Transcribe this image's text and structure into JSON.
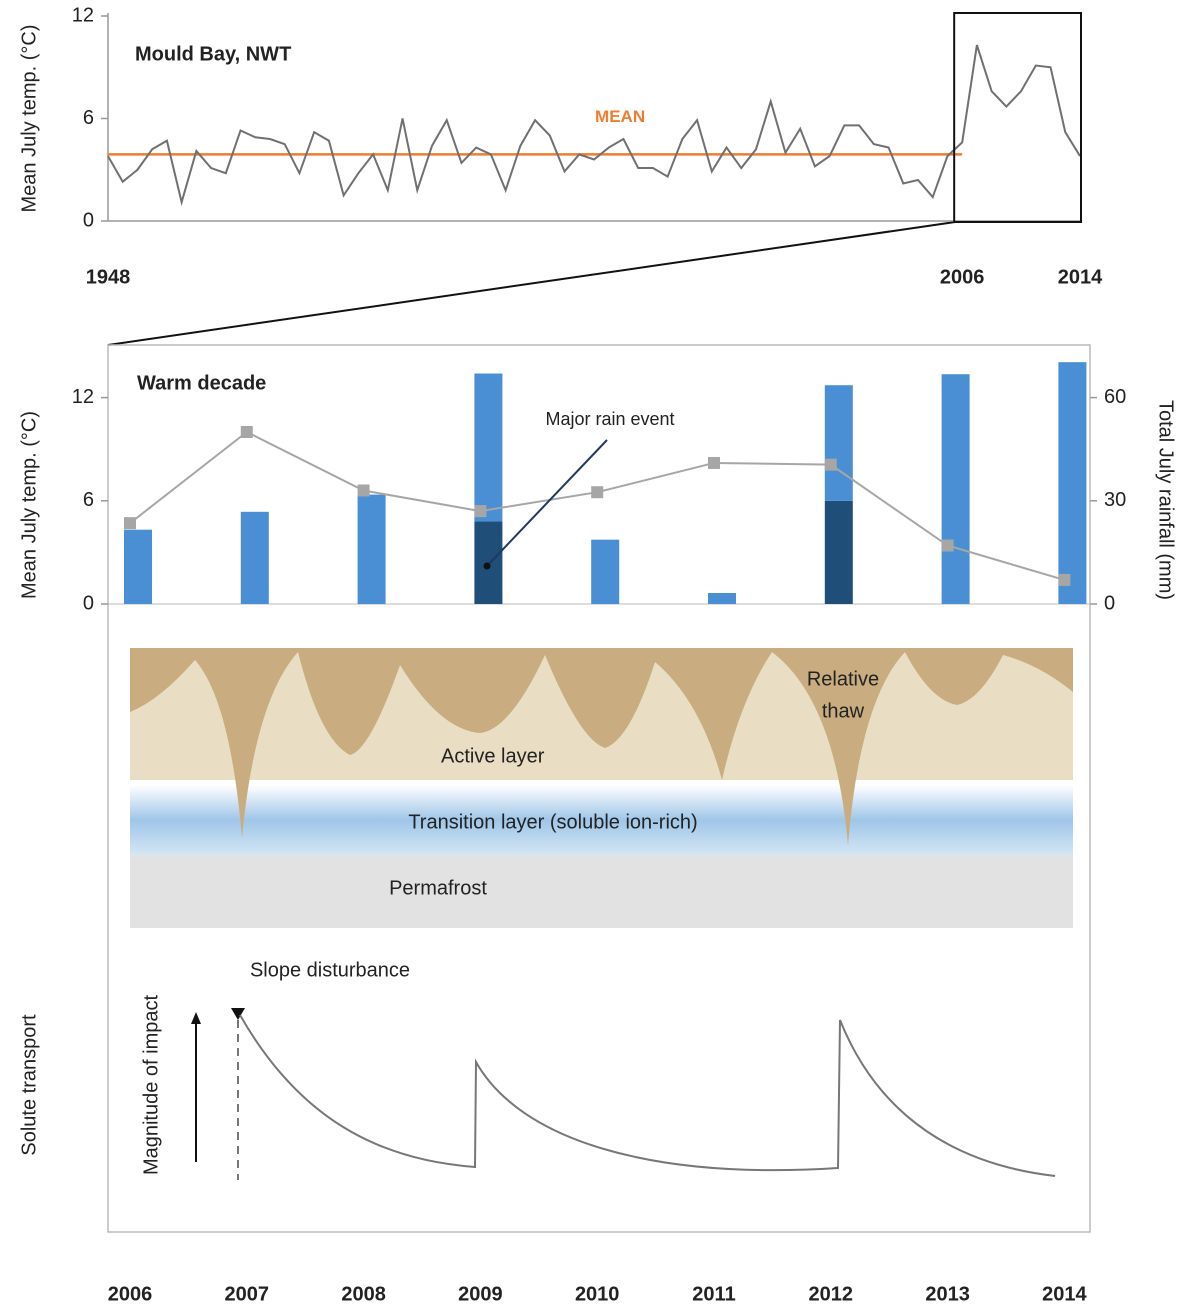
{
  "chart_data": [
    {
      "type": "line",
      "annotation": "Mould Bay, NWT",
      "ylabel": "Mean July temp. (°C)",
      "x": [
        1948,
        1949,
        1950,
        1951,
        1952,
        1953,
        1954,
        1955,
        1956,
        1957,
        1958,
        1959,
        1960,
        1961,
        1962,
        1963,
        1964,
        1965,
        1966,
        1967,
        1968,
        1969,
        1970,
        1971,
        1972,
        1973,
        1974,
        1975,
        1976,
        1977,
        1978,
        1979,
        1980,
        1981,
        1982,
        1983,
        1984,
        1985,
        1986,
        1987,
        1988,
        1989,
        1990,
        1991,
        1992,
        1993,
        1994,
        1995,
        1996,
        1997,
        1998,
        1999,
        2000,
        2001,
        2002,
        2003,
        2004,
        2005,
        2006,
        2007,
        2008,
        2009,
        2010,
        2011,
        2012,
        2013,
        2014
      ],
      "series": [
        {
          "color": "#707070",
          "values": [
            3.8,
            2.3,
            3.0,
            4.2,
            4.7,
            1.1,
            4.1,
            3.1,
            2.8,
            5.3,
            4.9,
            4.8,
            4.5,
            2.8,
            5.2,
            4.7,
            1.5,
            2.8,
            3.9,
            1.8,
            6.0,
            1.8,
            4.4,
            5.9,
            3.4,
            4.3,
            3.9,
            1.8,
            4.4,
            5.9,
            5.0,
            2.9,
            3.9,
            3.6,
            4.3,
            4.8,
            3.1,
            3.1,
            2.6,
            4.8,
            5.9,
            2.9,
            4.3,
            3.1,
            4.2,
            7.0,
            4.0,
            5.4,
            3.2,
            3.8,
            5.6,
            5.6,
            4.5,
            4.3,
            2.2,
            2.4,
            1.4,
            3.8,
            4.6,
            10.3,
            7.6,
            6.7,
            7.6,
            9.1,
            9.0,
            5.2,
            3.8
          ]
        }
      ],
      "mean": {
        "value": 3.9,
        "label": "MEAN",
        "color": "#ed7d31"
      },
      "xlim": [
        1948,
        2014
      ],
      "xticks": [
        1948,
        2006,
        2014
      ],
      "ylim": [
        0,
        12
      ],
      "yticks": [
        0,
        6,
        12
      ]
    },
    {
      "type": "combo",
      "annotation": "Warm decade",
      "event_label": "Major rain event",
      "ylabel": "Mean July temp. (°C)",
      "y2label": "Total July rainfall (mm)",
      "categories": [
        "2006",
        "2007",
        "2008",
        "2009",
        "2010",
        "2011",
        "2012",
        "2013",
        "2014"
      ],
      "series": [
        {
          "type": "bar",
          "axis": "y2",
          "color": "#1f4e79",
          "values": [
            null,
            null,
            null,
            24,
            null,
            null,
            30,
            null,
            null
          ]
        },
        {
          "type": "bar",
          "axis": "y2",
          "color": "#4a8fd4",
          "values": [
            21.6,
            26.8,
            31.8,
            43,
            18.7,
            3.2,
            33.6,
            66.8,
            70.3
          ]
        },
        {
          "type": "line",
          "color": "#a6a6a6",
          "values": [
            4.7,
            10.0,
            6.6,
            5.4,
            6.5,
            8.2,
            8.1,
            3.4,
            1.4
          ]
        }
      ],
      "ylim": [
        0,
        15
      ],
      "yticks": [
        0,
        6,
        12
      ],
      "y2lim": [
        0,
        75
      ],
      "y2ticks": [
        0,
        30,
        60
      ]
    }
  ],
  "diagram": {
    "active_layer": "Active layer",
    "transition_layer": "Transition layer (soluble ion-rich)",
    "permafrost": "Permafrost",
    "relative_thaw": [
      "Relative",
      "thaw"
    ]
  },
  "solute_panel": {
    "slope_disturbance": "Slope disturbance",
    "magnitude_of_impact": "Magnitude of impact",
    "solute_transport": "Solute transport"
  }
}
